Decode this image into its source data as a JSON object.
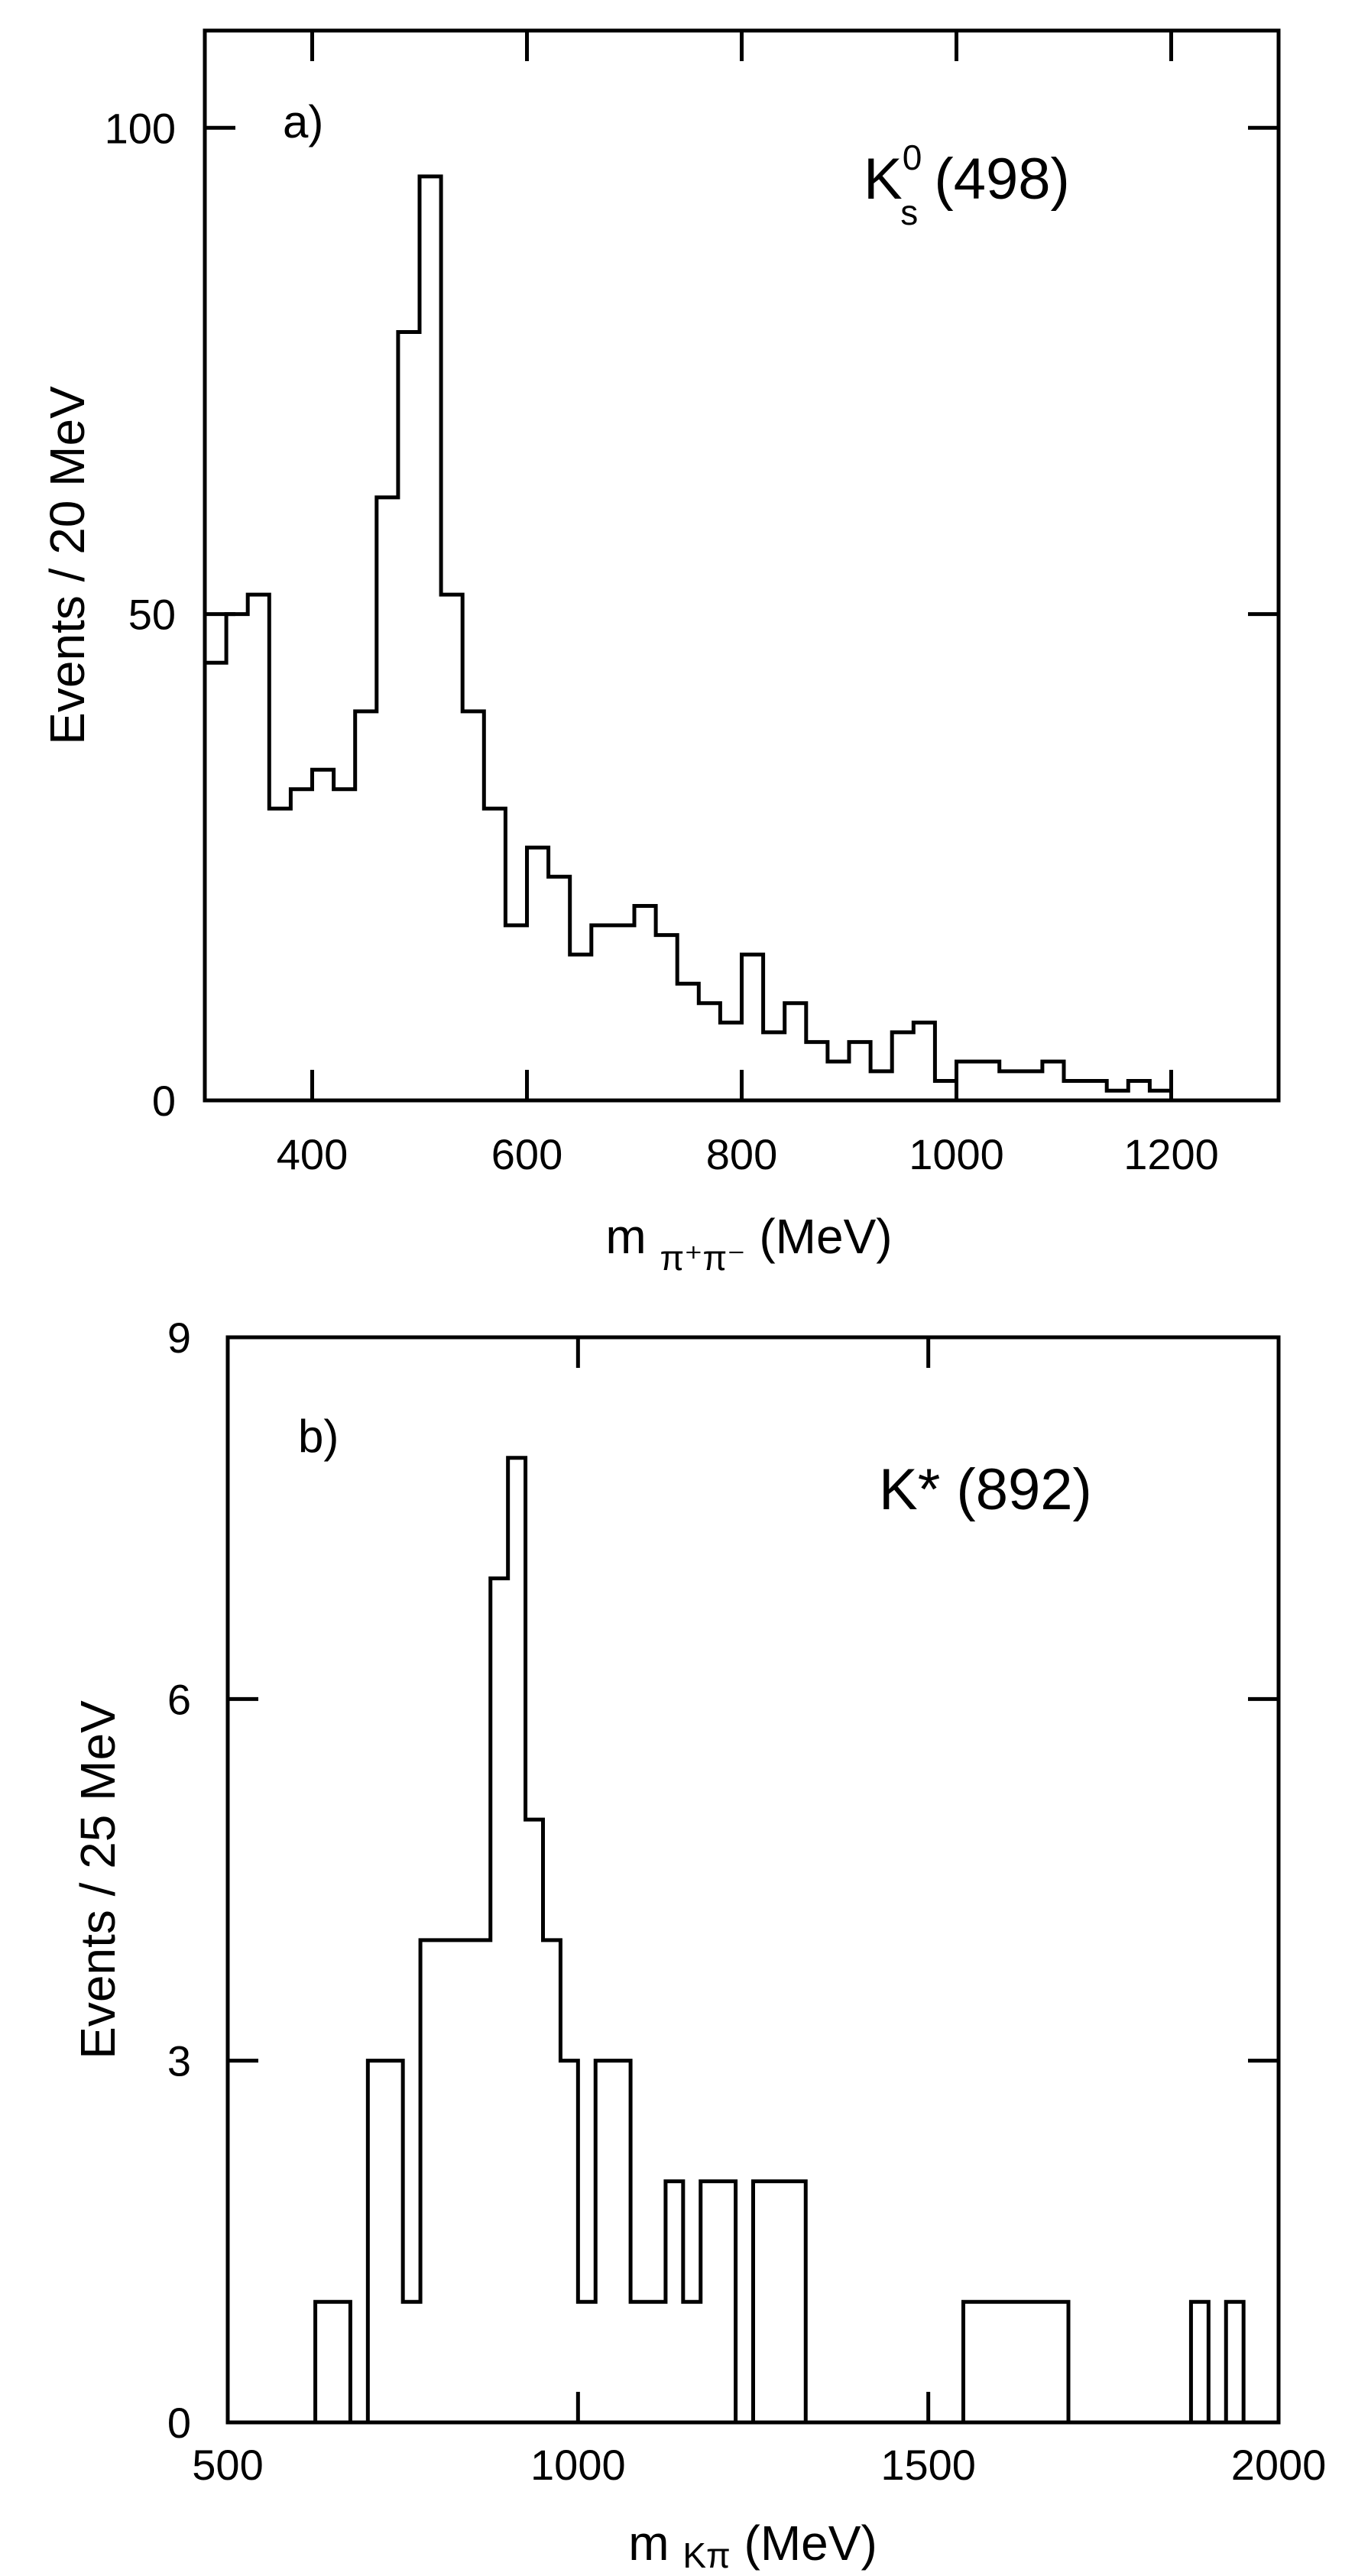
{
  "chart_data": [
    {
      "type": "histogram",
      "panel_label": "a)",
      "annotation": {
        "main": "K",
        "sup": "0",
        "sub": "s",
        "rest": " (498)"
      },
      "xlabel": {
        "main": "m ",
        "sub": "π⁺π⁻",
        "rest": " (MeV)"
      },
      "ylabel": "Events / 20 MeV",
      "xlim": [
        300,
        1300
      ],
      "ylim": [
        0,
        110
      ],
      "x_ticks": [
        400,
        600,
        800,
        1000,
        1200
      ],
      "y_ticks": [
        0,
        50,
        100
      ],
      "bin_width": 20,
      "bin_start": 300,
      "values": [
        45,
        50,
        52,
        30,
        32,
        34,
        32,
        40,
        62,
        79,
        95,
        52,
        40,
        30,
        18,
        26,
        23,
        15,
        18,
        18,
        20,
        17,
        12,
        10,
        8,
        15,
        7,
        10,
        6,
        4,
        6,
        3,
        7,
        8,
        2,
        4,
        4,
        3,
        3,
        4,
        2,
        2,
        1,
        2,
        1
      ]
    },
    {
      "type": "histogram",
      "panel_label": "b)",
      "annotation": {
        "main": "K* (892)"
      },
      "xlabel": {
        "main": "m ",
        "sub": "Kπ",
        "rest": " (MeV)"
      },
      "ylabel": "Events / 25 MeV",
      "xlim": [
        500,
        2000
      ],
      "ylim": [
        0,
        9
      ],
      "x_ticks": [
        500,
        1000,
        1500,
        2000
      ],
      "y_ticks": [
        0,
        3,
        6,
        9
      ],
      "bins": [
        {
          "x0": 625,
          "x1": 675,
          "v": 1
        },
        {
          "x0": 700,
          "x1": 750,
          "v": 3
        },
        {
          "x0": 750,
          "x1": 775,
          "v": 1
        },
        {
          "x0": 775,
          "x1": 875,
          "v": 4
        },
        {
          "x0": 875,
          "x1": 900,
          "v": 7
        },
        {
          "x0": 900,
          "x1": 925,
          "v": 8
        },
        {
          "x0": 925,
          "x1": 950,
          "v": 5
        },
        {
          "x0": 950,
          "x1": 975,
          "v": 4
        },
        {
          "x0": 975,
          "x1": 1000,
          "v": 3
        },
        {
          "x0": 1000,
          "x1": 1025,
          "v": 1
        },
        {
          "x0": 1025,
          "x1": 1075,
          "v": 3
        },
        {
          "x0": 1075,
          "x1": 1125,
          "v": 1
        },
        {
          "x0": 1125,
          "x1": 1150,
          "v": 2
        },
        {
          "x0": 1150,
          "x1": 1175,
          "v": 1
        },
        {
          "x0": 1175,
          "x1": 1225,
          "v": 2
        },
        {
          "x0": 1250,
          "x1": 1325,
          "v": 2
        },
        {
          "x0": 1550,
          "x1": 1700,
          "v": 1
        },
        {
          "x0": 1875,
          "x1": 1900,
          "v": 1
        },
        {
          "x0": 1925,
          "x1": 1950,
          "v": 1
        }
      ]
    }
  ]
}
